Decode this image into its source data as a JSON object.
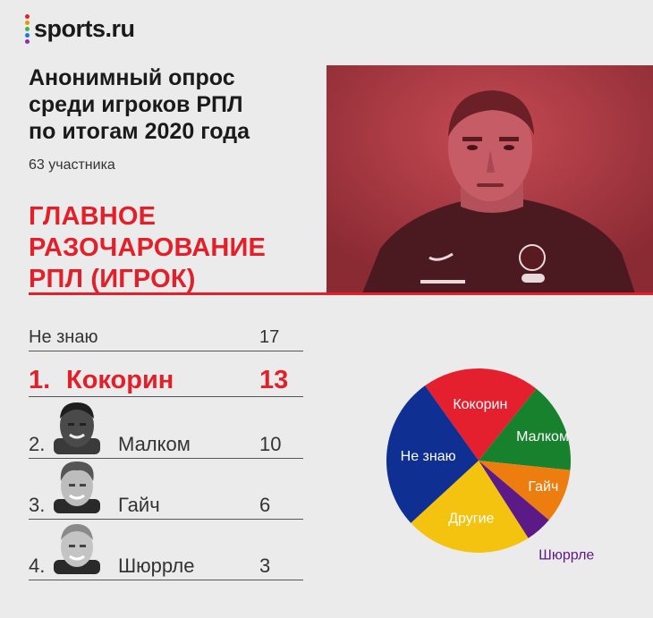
{
  "brand": "sports.ru",
  "brand_dot_colors": [
    "#e3202a",
    "#f39200",
    "#3cb54a",
    "#1b7ad9",
    "#8e2ea6"
  ],
  "title": "Анонимный опрос\nсреди игроков РПЛ\nпо итогам 2020 года",
  "subtitle": "63 участника",
  "section_title": "ГЛАВНОЕ\nРАЗОЧАРОВАНИЕ\nРПЛ (ИГРОК)",
  "accent": "#e3202a",
  "ranking": [
    {
      "rank": "",
      "name": "Не знаю",
      "value": "17"
    },
    {
      "rank": "1.",
      "name": "Кокорин",
      "value": "13"
    },
    {
      "rank": "2.",
      "name": "Малком",
      "value": "10"
    },
    {
      "rank": "3.",
      "name": "Гайч",
      "value": "6"
    },
    {
      "rank": "4.",
      "name": "Шюррле",
      "value": "3"
    }
  ],
  "chart_data": {
    "type": "pie",
    "slices": [
      {
        "label": "Кокорин",
        "value": 13,
        "color": "#e4202e"
      },
      {
        "label": "Малком",
        "value": 10,
        "color": "#17812e"
      },
      {
        "label": "Гайч",
        "value": 6,
        "color": "#ee7d10"
      },
      {
        "label": "Шюррле",
        "value": 3,
        "color": "#5c1a86"
      },
      {
        "label": "Другие",
        "value": 14,
        "color": "#f4c30f"
      },
      {
        "label": "Не знаю",
        "value": 17,
        "color": "#0f2f93"
      }
    ]
  }
}
